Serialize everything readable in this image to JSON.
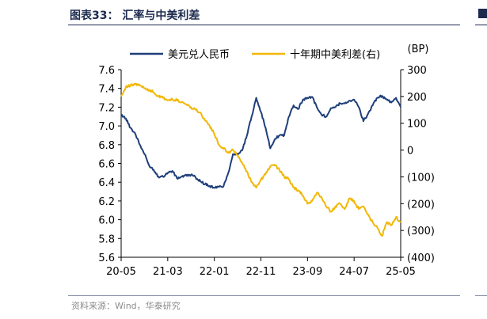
{
  "header": {
    "title": "图表33： 汇率与中美利差"
  },
  "footer": {
    "source": "资料来源：Wind，华泰研究"
  },
  "colors": {
    "usdcny": "#1f3f7a",
    "spread": "#f2b705",
    "header_rule": "#1c2a4e"
  },
  "chart_data": {
    "type": "line",
    "title": "",
    "x_ticks": [
      "20-05",
      "21-03",
      "22-01",
      "22-11",
      "23-09",
      "24-07",
      "25-05"
    ],
    "y_left": {
      "label": "",
      "lim": [
        5.6,
        7.6
      ],
      "ticks": [
        "7.6",
        "7.4",
        "7.2",
        "7.0",
        "6.8",
        "6.6",
        "6.4",
        "6.2",
        "6.0",
        "5.8",
        "5.6"
      ]
    },
    "y_right": {
      "label": "(BP)",
      "lim": [
        -400,
        300
      ],
      "ticks": [
        "300",
        "200",
        "100",
        "0",
        "(100)",
        "(200)",
        "(300)",
        "(400)"
      ]
    },
    "legend_position": "top",
    "grid": false,
    "series": [
      {
        "name": "美元兑人民币",
        "axis": "left",
        "color": "#1f3f7a",
        "x": [
          "2020-05",
          "2020-06",
          "2020-07",
          "2020-08",
          "2020-09",
          "2020-10",
          "2020-11",
          "2020-12",
          "2021-01",
          "2021-02",
          "2021-03",
          "2021-04",
          "2021-05",
          "2021-06",
          "2021-07",
          "2021-08",
          "2021-09",
          "2021-10",
          "2021-11",
          "2021-12",
          "2022-01",
          "2022-02",
          "2022-03",
          "2022-04",
          "2022-05",
          "2022-06",
          "2022-07",
          "2022-08",
          "2022-09",
          "2022-10",
          "2022-11",
          "2022-12",
          "2023-01",
          "2023-02",
          "2023-03",
          "2023-04",
          "2023-05",
          "2023-06",
          "2023-07",
          "2023-08",
          "2023-09",
          "2023-10",
          "2023-11",
          "2023-12",
          "2024-01",
          "2024-02",
          "2024-03",
          "2024-04",
          "2024-05",
          "2024-06",
          "2024-07",
          "2024-08",
          "2024-09",
          "2024-10",
          "2024-11",
          "2024-12",
          "2025-01",
          "2025-02",
          "2025-03",
          "2025-04",
          "2025-05"
        ],
        "values": [
          7.12,
          7.08,
          6.98,
          6.92,
          6.8,
          6.7,
          6.58,
          6.53,
          6.46,
          6.46,
          6.5,
          6.52,
          6.44,
          6.46,
          6.47,
          6.48,
          6.45,
          6.41,
          6.38,
          6.36,
          6.34,
          6.35,
          6.36,
          6.5,
          6.7,
          6.7,
          6.74,
          6.9,
          7.1,
          7.3,
          7.15,
          6.98,
          6.76,
          6.86,
          6.9,
          6.9,
          7.1,
          7.22,
          7.18,
          7.28,
          7.3,
          7.31,
          7.2,
          7.12,
          7.1,
          7.19,
          7.2,
          7.24,
          7.24,
          7.27,
          7.28,
          7.2,
          7.05,
          7.13,
          7.22,
          7.3,
          7.32,
          7.28,
          7.25,
          7.3,
          7.2
        ]
      },
      {
        "name": "十年期中美利差(右)",
        "axis": "right",
        "color": "#f2b705",
        "x": [
          "2020-05",
          "2020-06",
          "2020-07",
          "2020-08",
          "2020-09",
          "2020-10",
          "2020-11",
          "2020-12",
          "2021-01",
          "2021-02",
          "2021-03",
          "2021-04",
          "2021-05",
          "2021-06",
          "2021-07",
          "2021-08",
          "2021-09",
          "2021-10",
          "2021-11",
          "2021-12",
          "2022-01",
          "2022-02",
          "2022-03",
          "2022-04",
          "2022-05",
          "2022-06",
          "2022-07",
          "2022-08",
          "2022-09",
          "2022-10",
          "2022-11",
          "2022-12",
          "2023-01",
          "2023-02",
          "2023-03",
          "2023-04",
          "2023-05",
          "2023-06",
          "2023-07",
          "2023-08",
          "2023-09",
          "2023-10",
          "2023-11",
          "2023-12",
          "2024-01",
          "2024-02",
          "2024-03",
          "2024-04",
          "2024-05",
          "2024-06",
          "2024-07",
          "2024-08",
          "2024-09",
          "2024-10",
          "2024-11",
          "2024-12",
          "2025-01",
          "2025-02",
          "2025-03",
          "2025-04",
          "2025-05"
        ],
        "values": [
          200,
          235,
          240,
          245,
          242,
          230,
          225,
          215,
          200,
          195,
          185,
          190,
          185,
          180,
          170,
          160,
          150,
          140,
          110,
          90,
          60,
          20,
          5,
          -10,
          0,
          -20,
          -50,
          -80,
          -120,
          -140,
          -110,
          -90,
          -60,
          -55,
          -75,
          -100,
          -110,
          -140,
          -150,
          -170,
          -200,
          -190,
          -160,
          -175,
          -210,
          -230,
          -210,
          -200,
          -220,
          -180,
          -190,
          -220,
          -210,
          -240,
          -270,
          -290,
          -320,
          -270,
          -280,
          -250,
          -270
        ]
      }
    ]
  }
}
